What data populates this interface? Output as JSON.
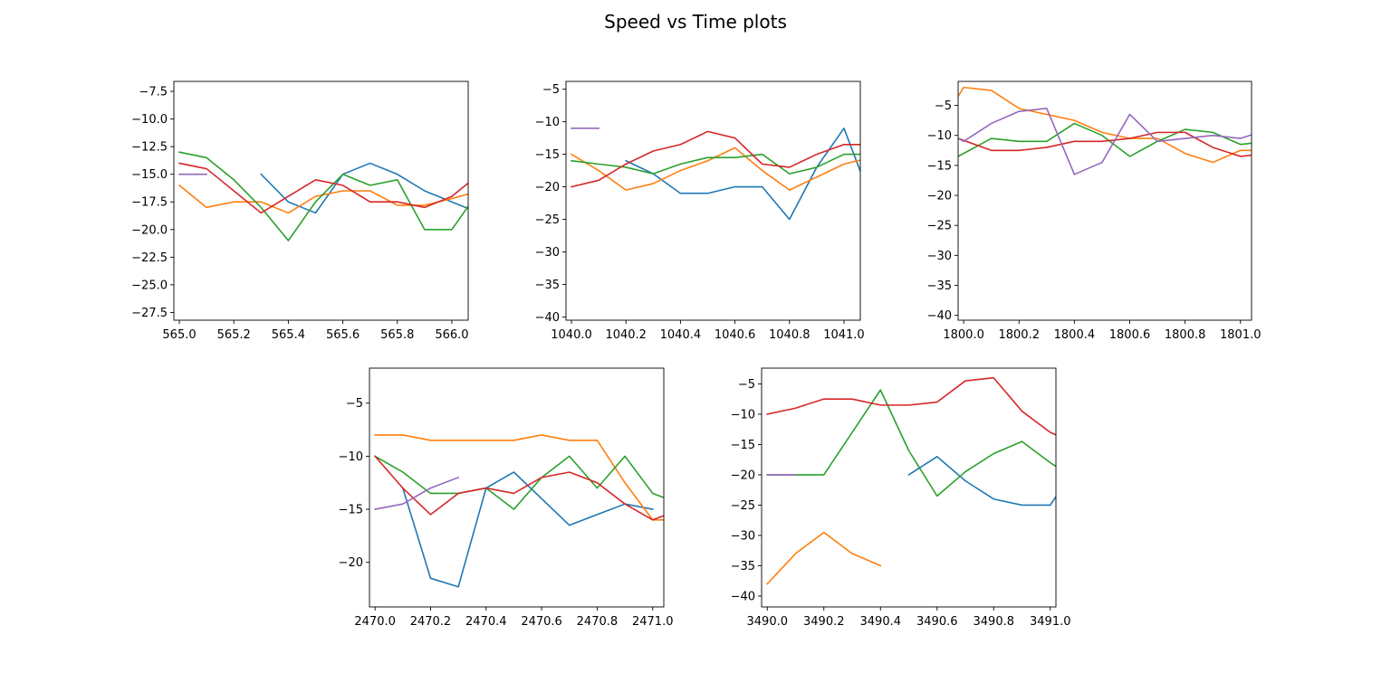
{
  "figure": {
    "title": "Speed vs Time plots"
  },
  "colors": [
    "#1f77b4",
    "#ff7f0e",
    "#2ca02c",
    "#d62728",
    "#9467bd"
  ],
  "chart_data": [
    {
      "type": "line",
      "xlim": [
        564.98,
        566.06
      ],
      "ylim": [
        -28.2,
        -6.6
      ],
      "xticks": [
        565.0,
        565.2,
        565.4,
        565.6,
        565.8,
        566.0
      ],
      "xtick_labels": [
        "565.0",
        "565.2",
        "565.4",
        "565.6",
        "565.8",
        "566.0"
      ],
      "yticks": [
        -27.5,
        -25.0,
        -22.5,
        -20.0,
        -17.5,
        -15.0,
        -12.5,
        -10.0,
        -7.5
      ],
      "ytick_labels": [
        "−27.5",
        "−25.0",
        "−22.5",
        "−20.0",
        "−17.5",
        "−15.0",
        "−12.5",
        "−10.0",
        "−7.5"
      ],
      "series": [
        {
          "x": [
            565.3,
            565.4,
            565.5,
            565.6,
            565.7,
            565.8,
            565.9,
            566.0,
            566.1
          ],
          "y": [
            -15.0,
            -17.5,
            -18.5,
            -15.0,
            -14.0,
            -15.0,
            -16.5,
            -17.5,
            -18.5
          ]
        },
        {
          "x": [
            565.0,
            565.1,
            565.2,
            565.3,
            565.4,
            565.5,
            565.6,
            565.7,
            565.8,
            565.9,
            566.0,
            566.1
          ],
          "y": [
            -16.0,
            -18.0,
            -17.5,
            -17.5,
            -18.5,
            -17.0,
            -16.5,
            -16.5,
            -17.8,
            -17.8,
            -17.2,
            -16.5
          ]
        },
        {
          "x": [
            565.0,
            565.1,
            565.2,
            565.3,
            565.4,
            565.5,
            565.6,
            565.7,
            565.8,
            565.9,
            566.0,
            566.1
          ],
          "y": [
            -13.0,
            -13.5,
            -15.5,
            -18.0,
            -21.0,
            -17.5,
            -15.0,
            -16.0,
            -15.5,
            -20.0,
            -20.0,
            -16.5
          ]
        },
        {
          "x": [
            565.0,
            565.1,
            565.2,
            565.3,
            565.4,
            565.5,
            565.6,
            565.7,
            565.8,
            565.9,
            566.0,
            566.1
          ],
          "y": [
            -14.0,
            -14.5,
            -16.5,
            -18.5,
            -17.0,
            -15.5,
            -16.0,
            -17.5,
            -17.5,
            -18.0,
            -17.0,
            -15.0
          ]
        },
        {
          "x": [
            565.0,
            565.1
          ],
          "y": [
            -15.0,
            -15.0
          ]
        }
      ]
    },
    {
      "type": "line",
      "xlim": [
        1039.98,
        1041.06
      ],
      "ylim": [
        -40.5,
        -3.8
      ],
      "xticks": [
        1040.0,
        1040.2,
        1040.4,
        1040.6,
        1040.8,
        1041.0
      ],
      "xtick_labels": [
        "1040.0",
        "1040.2",
        "1040.4",
        "1040.6",
        "1040.8",
        "1041.0"
      ],
      "yticks": [
        -40,
        -35,
        -30,
        -25,
        -20,
        -15,
        -10,
        -5
      ],
      "ytick_labels": [
        "−40",
        "−35",
        "−30",
        "−25",
        "−20",
        "−15",
        "−10",
        "−5"
      ],
      "series": [
        {
          "x": [
            1040.2,
            1040.3,
            1040.4,
            1040.5,
            1040.6,
            1040.7,
            1040.8,
            1040.9,
            1041.0,
            1041.1
          ],
          "y": [
            -16.0,
            -18.0,
            -21.0,
            -21.0,
            -20.0,
            -20.0,
            -25.0,
            -17.0,
            -11.0,
            -22.0
          ]
        },
        {
          "x": [
            1040.0,
            1040.1,
            1040.2,
            1040.3,
            1040.4,
            1040.5,
            1040.6,
            1040.7,
            1040.8,
            1040.9,
            1041.0,
            1041.1
          ],
          "y": [
            -15.0,
            -17.5,
            -20.5,
            -19.5,
            -17.5,
            -16.0,
            -14.0,
            -17.5,
            -20.5,
            -18.5,
            -16.5,
            -15.5
          ]
        },
        {
          "x": [
            1040.0,
            1040.1,
            1040.2,
            1040.3,
            1040.4,
            1040.5,
            1040.6,
            1040.7,
            1040.8,
            1040.9,
            1041.0,
            1041.1
          ],
          "y": [
            -16.0,
            -16.5,
            -17.0,
            -18.0,
            -16.5,
            -15.5,
            -15.5,
            -15.0,
            -18.0,
            -17.0,
            -15.0,
            -15.0
          ]
        },
        {
          "x": [
            1040.0,
            1040.1,
            1040.2,
            1040.3,
            1040.4,
            1040.5,
            1040.6,
            1040.7,
            1040.8,
            1040.9,
            1041.0,
            1041.1
          ],
          "y": [
            -20.0,
            -19.0,
            -16.5,
            -14.5,
            -13.5,
            -11.5,
            -12.5,
            -16.5,
            -17.0,
            -15.0,
            -13.5,
            -13.5
          ]
        },
        {
          "x": [
            1040.0,
            1040.1
          ],
          "y": [
            -11.0,
            -11.0
          ]
        }
      ]
    },
    {
      "type": "line",
      "xlim": [
        1799.98,
        1801.04
      ],
      "ylim": [
        -40.8,
        -1.0
      ],
      "xticks": [
        1800.0,
        1800.2,
        1800.4,
        1800.6,
        1800.8,
        1801.0
      ],
      "xtick_labels": [
        "1800.0",
        "1800.2",
        "1800.4",
        "1800.6",
        "1800.8",
        "1801.0"
      ],
      "yticks": [
        -40,
        -35,
        -30,
        -25,
        -20,
        -15,
        -10,
        -5
      ],
      "ytick_labels": [
        "−40",
        "−35",
        "−30",
        "−25",
        "−20",
        "−15",
        "−10",
        "−5"
      ],
      "series": [
        {
          "x": [],
          "y": []
        },
        {
          "x": [
            1799.98,
            1800.0,
            1800.1,
            1800.2,
            1800.3,
            1800.4,
            1800.5,
            1800.6,
            1800.7,
            1800.8,
            1800.9,
            1801.0,
            1801.1
          ],
          "y": [
            -3.5,
            -2.0,
            -2.5,
            -5.5,
            -6.5,
            -7.5,
            -9.5,
            -10.5,
            -10.5,
            -13.0,
            -14.5,
            -12.5,
            -12.5
          ]
        },
        {
          "x": [
            1799.98,
            1800.1,
            1800.2,
            1800.3,
            1800.4,
            1800.5,
            1800.6,
            1800.7,
            1800.8,
            1800.9,
            1801.0,
            1801.1
          ],
          "y": [
            -13.5,
            -10.5,
            -11.0,
            -11.0,
            -8.0,
            -10.0,
            -13.5,
            -11.0,
            -9.0,
            -9.5,
            -11.5,
            -11.0
          ]
        },
        {
          "x": [
            1799.98,
            1800.1,
            1800.2,
            1800.3,
            1800.4,
            1800.5,
            1800.6,
            1800.7,
            1800.8,
            1800.9,
            1801.0,
            1801.1
          ],
          "y": [
            -10.5,
            -12.5,
            -12.5,
            -12.0,
            -11.0,
            -11.0,
            -10.5,
            -9.5,
            -9.5,
            -12.0,
            -13.5,
            -13.0
          ]
        },
        {
          "x": [
            1799.98,
            1800.0,
            1800.1,
            1800.2,
            1800.3,
            1800.4,
            1800.5,
            1800.6,
            1800.7,
            1800.8,
            1800.9,
            1801.0,
            1801.1
          ],
          "y": [
            -10.5,
            -11.0,
            -8.0,
            -6.0,
            -5.5,
            -16.5,
            -14.5,
            -6.5,
            -11.0,
            -10.5,
            -10.0,
            -10.5,
            -9.0
          ]
        }
      ]
    },
    {
      "type": "line",
      "xlim": [
        2469.98,
        2471.04
      ],
      "ylim": [
        -24.2,
        -1.7
      ],
      "xticks": [
        2470.0,
        2470.2,
        2470.4,
        2470.6,
        2470.8,
        2471.0
      ],
      "xtick_labels": [
        "2470.0",
        "2470.2",
        "2470.4",
        "2470.6",
        "2470.8",
        "2471.0"
      ],
      "yticks": [
        -20,
        -15,
        -10,
        -5
      ],
      "ytick_labels": [
        "−20",
        "−15",
        "−10",
        "−5"
      ],
      "series": [
        {
          "x": [
            2470.1,
            2470.2,
            2470.3,
            2470.4,
            2470.5,
            2470.6,
            2470.7,
            2470.8,
            2470.9,
            2471.0
          ],
          "y": [
            -13.0,
            -21.5,
            -22.3,
            -13.0,
            -11.5,
            -14.0,
            -16.5,
            -15.5,
            -14.5,
            -15.0
          ]
        },
        {
          "x": [
            2470.0,
            2470.1,
            2470.2,
            2470.3,
            2470.4,
            2470.5,
            2470.6,
            2470.7,
            2470.8,
            2470.9,
            2471.0,
            2471.1
          ],
          "y": [
            -8.0,
            -8.0,
            -8.5,
            -8.5,
            -8.5,
            -8.5,
            -8.0,
            -8.5,
            -8.5,
            -12.5,
            -16.0,
            -16.0
          ]
        },
        {
          "x": [
            2470.0,
            2470.1,
            2470.2,
            2470.3,
            2470.4,
            2470.5,
            2470.6,
            2470.7,
            2470.8,
            2470.9,
            2471.0,
            2471.1
          ],
          "y": [
            -10.0,
            -11.5,
            -13.5,
            -13.5,
            -13.0,
            -15.0,
            -12.0,
            -10.0,
            -13.0,
            -10.0,
            -13.5,
            -14.5
          ]
        },
        {
          "x": [
            2470.0,
            2470.1,
            2470.2,
            2470.3,
            2470.4,
            2470.5,
            2470.6,
            2470.7,
            2470.8,
            2470.9,
            2471.0,
            2471.1
          ],
          "y": [
            -10.0,
            -13.0,
            -15.5,
            -13.5,
            -13.0,
            -13.5,
            -12.0,
            -11.5,
            -12.5,
            -14.5,
            -16.0,
            -15.0
          ]
        },
        {
          "x": [
            2470.0,
            2470.1,
            2470.2,
            2470.3
          ],
          "y": [
            -15.0,
            -14.5,
            -13.0,
            -12.0
          ]
        }
      ]
    },
    {
      "type": "line",
      "xlim": [
        3489.98,
        3491.02
      ],
      "ylim": [
        -41.8,
        -2.4
      ],
      "xticks": [
        3490.0,
        3490.2,
        3490.4,
        3490.6,
        3490.8,
        3491.0
      ],
      "xtick_labels": [
        "3490.0",
        "3490.2",
        "3490.4",
        "3490.6",
        "3490.8",
        "3491.0"
      ],
      "yticks": [
        -40,
        -35,
        -30,
        -25,
        -20,
        -15,
        -10,
        -5
      ],
      "ytick_labels": [
        "−40",
        "−35",
        "−30",
        "−25",
        "−20",
        "−15",
        "−10",
        "−5"
      ],
      "series": [
        {
          "x": [
            3490.5,
            3490.6,
            3490.7,
            3490.8,
            3490.9,
            3491.0,
            3491.1
          ],
          "y": [
            -20.0,
            -17.0,
            -21.0,
            -24.0,
            -25.0,
            -25.0,
            -18.0
          ]
        },
        {
          "x": [
            3490.0,
            3490.1,
            3490.2,
            3490.3,
            3490.4
          ],
          "y": [
            -38.0,
            -33.0,
            -29.5,
            -33.0,
            -35.0
          ]
        },
        {
          "x": [
            3490.0,
            3490.1,
            3490.2,
            3490.3,
            3490.4,
            3490.5,
            3490.6,
            3490.7,
            3490.8,
            3490.9,
            3491.0,
            3491.1
          ],
          "y": [
            -20.0,
            -20.0,
            -20.0,
            -13.0,
            -6.0,
            -16.0,
            -23.5,
            -19.5,
            -16.5,
            -14.5,
            -18.0,
            -21.0
          ]
        },
        {
          "x": [
            3490.0,
            3490.1,
            3490.2,
            3490.3,
            3490.4,
            3490.5,
            3490.6,
            3490.7,
            3490.8,
            3490.9,
            3491.0,
            3491.1
          ],
          "y": [
            -10.0,
            -9.0,
            -7.5,
            -7.5,
            -8.5,
            -8.5,
            -8.0,
            -4.5,
            -4.0,
            -9.5,
            -13.0,
            -15.0
          ]
        },
        {
          "x": [
            3490.0,
            3490.1
          ],
          "y": [
            -20.0,
            -20.0
          ]
        }
      ]
    }
  ]
}
